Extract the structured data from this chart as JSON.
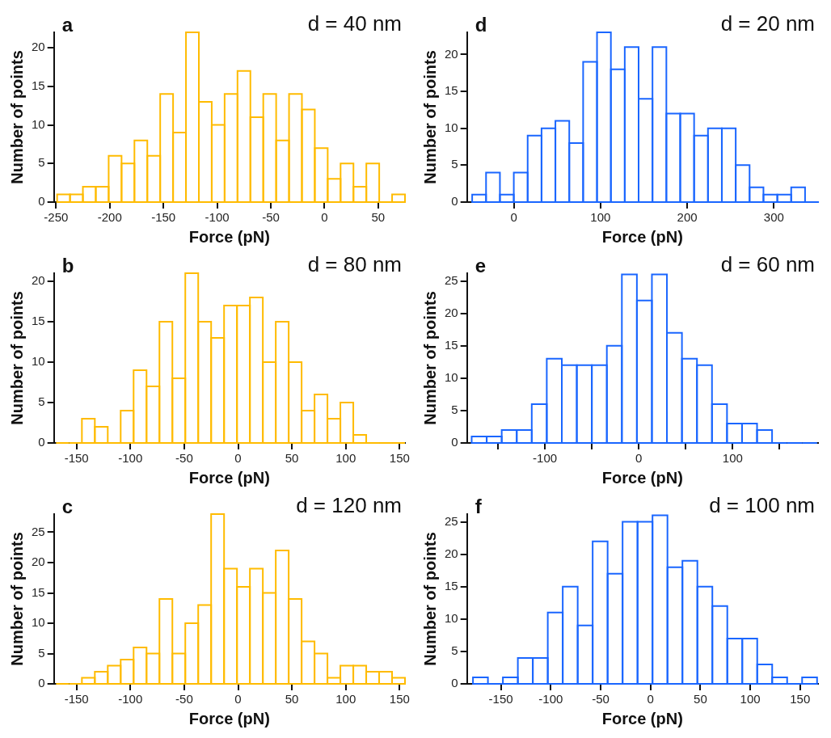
{
  "chart_data": [
    {
      "type": "histogram",
      "annotations": [
        "a",
        "d = 40 nm"
      ],
      "xlabel": "Force (pN)",
      "ylabel": "Number of points",
      "color": "#ffbb00",
      "grid": false,
      "bins": [
        -249,
        -237,
        -225,
        -213,
        -201,
        -189,
        -177,
        -165,
        -153,
        -141,
        -129,
        -117,
        -105,
        -93,
        -81,
        -69,
        -57,
        -45,
        -33,
        -21,
        -9,
        3,
        15,
        27,
        39,
        51,
        63,
        75
      ],
      "values": [
        1,
        1,
        2,
        2,
        6,
        5,
        8,
        6,
        14,
        9,
        22,
        13,
        10,
        14,
        17,
        11,
        14,
        8,
        14,
        12,
        7,
        3,
        5,
        2,
        5,
        0,
        1
      ],
      "xlim": [
        -252,
        75
      ],
      "xticks": [
        -250,
        -200,
        -150,
        -100,
        -50,
        0,
        50
      ],
      "ylim": [
        0,
        22
      ],
      "yticks": [
        0,
        5,
        10,
        15,
        20
      ]
    },
    {
      "type": "histogram",
      "annotations": [
        "b",
        "d = 80 nm"
      ],
      "xlabel": "Force (pN)",
      "ylabel": "Number of points",
      "color": "#ffbb00",
      "grid": false,
      "bins": [
        -169,
        -157,
        -145,
        -133,
        -121,
        -109,
        -97,
        -85,
        -73,
        -61,
        -49,
        -37,
        -25,
        -13,
        -1,
        11,
        23,
        35,
        47,
        59,
        71,
        83,
        95,
        107,
        119,
        131,
        143,
        155
      ],
      "values": [
        0,
        0,
        3,
        2,
        0,
        4,
        9,
        7,
        15,
        8,
        21,
        15,
        13,
        17,
        17,
        18,
        10,
        15,
        10,
        4,
        6,
        3,
        5,
        1,
        0,
        0,
        0
      ],
      "xlim": [
        -171,
        155
      ],
      "xticks": [
        -150,
        -100,
        -50,
        0,
        50,
        100,
        150
      ],
      "ylim": [
        0,
        21
      ],
      "yticks": [
        0,
        5,
        10,
        15,
        20
      ]
    },
    {
      "type": "histogram",
      "annotations": [
        "c",
        "d = 120 nm"
      ],
      "xlabel": "Force (pN)",
      "ylabel": "Number of points",
      "color": "#ffbb00",
      "grid": false,
      "bins": [
        -169,
        -157,
        -145,
        -133,
        -121,
        -109,
        -97,
        -85,
        -73,
        -61,
        -49,
        -37,
        -25,
        -13,
        -1,
        11,
        23,
        35,
        47,
        59,
        71,
        83,
        95,
        107,
        119,
        131,
        143,
        155
      ],
      "values": [
        0,
        0,
        1,
        2,
        3,
        4,
        6,
        5,
        14,
        5,
        10,
        13,
        28,
        19,
        16,
        19,
        15,
        22,
        14,
        7,
        5,
        1,
        3,
        3,
        2,
        2,
        1
      ],
      "xlim": [
        -171,
        155
      ],
      "xticks": [
        -150,
        -100,
        -50,
        0,
        50,
        100,
        150
      ],
      "ylim": [
        0,
        28
      ],
      "yticks": [
        0,
        5,
        10,
        15,
        20,
        25
      ]
    },
    {
      "type": "histogram",
      "annotations": [
        "d",
        "d = 20 nm"
      ],
      "xlabel": "Force (pN)",
      "ylabel": "Number of points",
      "color": "#1a66ff",
      "grid": false,
      "bins": [
        -48,
        -32,
        -16,
        0,
        16,
        32,
        48,
        64,
        80,
        96,
        112,
        128,
        144,
        160,
        176,
        192,
        208,
        224,
        240,
        256,
        272,
        288,
        304,
        320,
        336,
        352
      ],
      "values": [
        1,
        4,
        1,
        4,
        9,
        10,
        11,
        8,
        19,
        23,
        18,
        21,
        14,
        21,
        12,
        12,
        9,
        10,
        10,
        5,
        2,
        1,
        1,
        2,
        0
      ],
      "xlim": [
        -54,
        351
      ],
      "xticks": [
        0,
        100,
        200,
        300
      ],
      "ylim": [
        0,
        23
      ],
      "yticks": [
        0,
        5,
        10,
        15,
        20
      ]
    },
    {
      "type": "histogram",
      "annotations": [
        "e",
        "d = 60 nm"
      ],
      "xlabel": "Force (pN)",
      "ylabel": "Number of points",
      "color": "#1a66ff",
      "grid": false,
      "bins": [
        -178,
        -162,
        -146,
        -130,
        -114,
        -98,
        -82,
        -66,
        -50,
        -34,
        -18,
        -2,
        14,
        30,
        46,
        62,
        78,
        94,
        110,
        126,
        142,
        158,
        174,
        190
      ],
      "values": [
        1,
        1,
        2,
        2,
        6,
        13,
        12,
        12,
        12,
        15,
        26,
        22,
        26,
        17,
        13,
        12,
        6,
        3,
        3,
        2,
        0,
        0,
        0
      ],
      "xlim": [
        -183,
        191
      ],
      "xticks": [
        {
          "value": -150,
          "label": null
        },
        -100,
        {
          "value": -50,
          "label": null
        },
        0,
        {
          "value": 50,
          "label": null
        },
        100,
        {
          "value": 150,
          "label": null
        }
      ],
      "ylim": [
        0,
        26.2
      ],
      "yticks": [
        0,
        5,
        10,
        15,
        20,
        25
      ]
    },
    {
      "type": "histogram",
      "annotations": [
        "f",
        "d = 100 nm"
      ],
      "xlabel": "Force (pN)",
      "ylabel": "Number of points",
      "color": "#1a66ff",
      "grid": false,
      "bins": [
        -178,
        -163,
        -148,
        -133,
        -118,
        -103,
        -88,
        -73,
        -58,
        -43,
        -28,
        -13,
        2,
        17,
        32,
        47,
        62,
        77,
        92,
        107,
        122,
        137,
        152,
        167
      ],
      "values": [
        1,
        0,
        1,
        4,
        4,
        11,
        15,
        9,
        22,
        17,
        25,
        25,
        26,
        18,
        19,
        15,
        12,
        7,
        7,
        3,
        1,
        0,
        1
      ],
      "xlim": [
        -184,
        168
      ],
      "xticks": [
        -150,
        -100,
        -50,
        0,
        50,
        100,
        150
      ],
      "ylim": [
        0,
        26.2
      ],
      "yticks": [
        0,
        5,
        10,
        15,
        20,
        25
      ]
    }
  ]
}
